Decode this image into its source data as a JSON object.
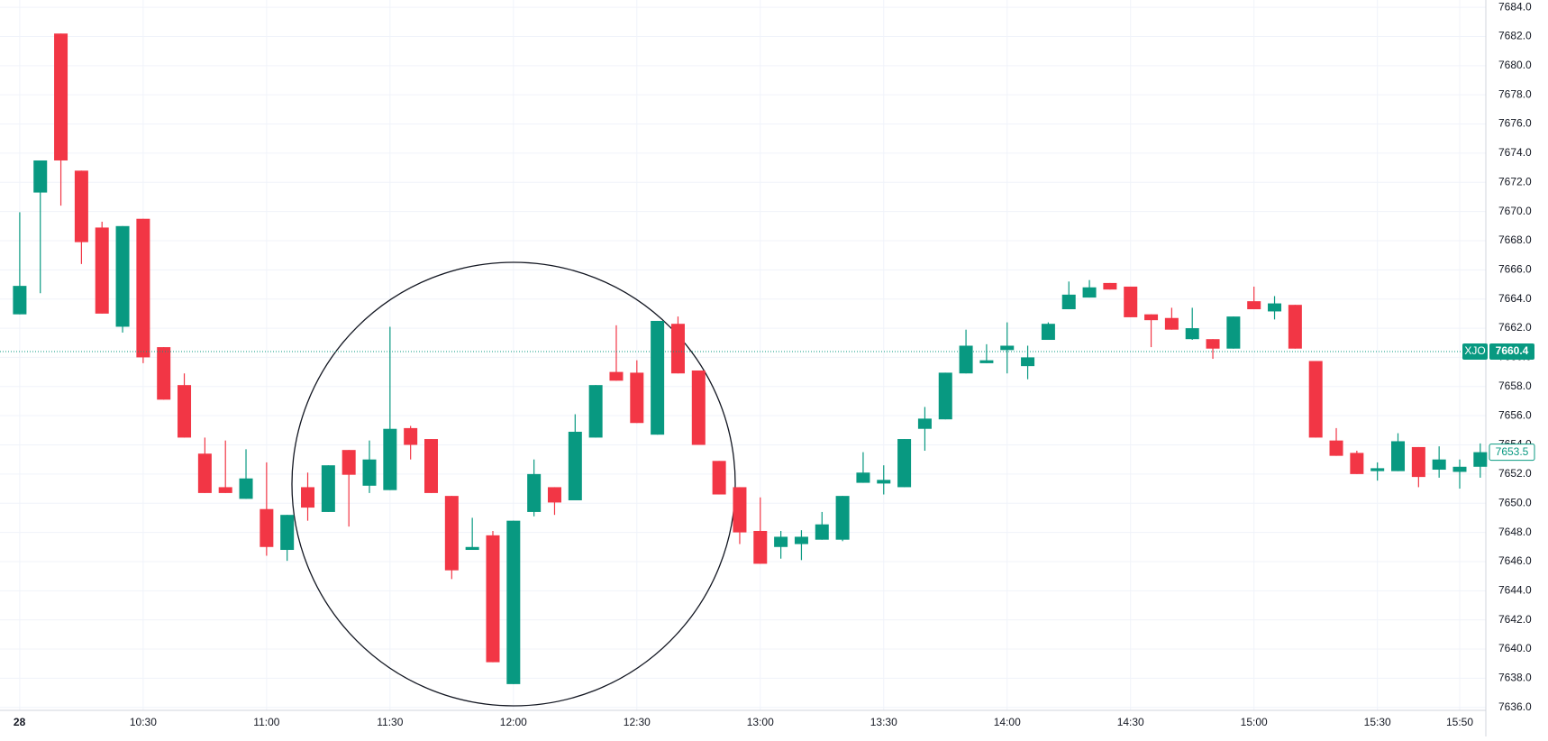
{
  "chart_data": {
    "type": "candlestick",
    "categories": [
      "28",
      null,
      null,
      null,
      null,
      null,
      "10:30",
      null,
      null,
      null,
      null,
      null,
      "11:00",
      null,
      null,
      null,
      null,
      null,
      "11:30",
      null,
      null,
      null,
      null,
      null,
      "12:00",
      null,
      null,
      null,
      null,
      null,
      "12:30",
      null,
      null,
      null,
      null,
      null,
      "13:00",
      null,
      null,
      null,
      null,
      null,
      "13:30",
      null,
      null,
      null,
      null,
      null,
      "14:00",
      null,
      null,
      null,
      null,
      null,
      "14:30",
      null,
      null,
      null,
      null,
      null,
      "15:00",
      null,
      null,
      null,
      null,
      null,
      "15:30",
      null,
      null,
      null,
      "15:50",
      null
    ],
    "open": [
      7662.95,
      7671.3,
      7682.2,
      7672.8,
      7668.9,
      7662.1,
      7669.5,
      7660.7,
      7658.1,
      7653.4,
      7651.1,
      7650.3,
      7649.6,
      7646.8,
      7651.1,
      7649.4,
      7653.65,
      7651.2,
      7650.9,
      7655.15,
      7654.4,
      7650.5,
      7646.8,
      7647.8,
      7637.6,
      7649.4,
      7651.1,
      7650.2,
      7654.5,
      7659.0,
      7658.95,
      7654.7,
      7662.3,
      7659.1,
      7652.9,
      7651.1,
      7648.1,
      7647.0,
      7647.2,
      7647.5,
      7647.5,
      7651.4,
      7651.35,
      7651.1,
      7655.1,
      7655.75,
      7658.9,
      7659.6,
      7660.5,
      7659.4,
      7661.2,
      7663.3,
      7664.1,
      7665.1,
      7664.85,
      7662.95,
      7662.7,
      7661.25,
      7661.25,
      7660.6,
      7663.85,
      7663.15,
      7663.6,
      7659.75,
      7654.3,
      7653.45,
      7652.2,
      7652.2,
      7653.85,
      7652.3,
      7652.15,
      7652.5
    ],
    "high": [
      7669.95,
      7673.5,
      7682.2,
      7672.8,
      7669.3,
      7669.0,
      7669.5,
      7660.7,
      7658.9,
      7654.5,
      7654.3,
      7653.7,
      7652.8,
      7649.2,
      7652.1,
      7652.6,
      7653.65,
      7654.3,
      7662.1,
      7655.3,
      7654.4,
      7650.5,
      7649.0,
      7648.1,
      7648.8,
      7653.0,
      7651.1,
      7656.1,
      7658.1,
      7662.2,
      7659.8,
      7662.5,
      7662.8,
      7659.1,
      7652.9,
      7651.1,
      7650.4,
      7648.1,
      7648.15,
      7649.4,
      7650.5,
      7653.5,
      7652.6,
      7654.4,
      7656.6,
      7658.95,
      7661.9,
      7660.9,
      7662.4,
      7660.8,
      7662.4,
      7665.2,
      7665.3,
      7665.1,
      7664.85,
      7662.95,
      7663.4,
      7663.4,
      7661.25,
      7662.8,
      7664.85,
      7664.2,
      7663.6,
      7659.75,
      7655.15,
      7653.6,
      7652.8,
      7654.8,
      7653.85,
      7653.9,
      7653.0,
      7654.1
    ],
    "low": [
      7662.95,
      7664.4,
      7670.4,
      7666.4,
      7663.0,
      7661.7,
      7659.6,
      7657.1,
      7654.5,
      7650.7,
      7650.7,
      7650.3,
      7646.4,
      7646.05,
      7648.8,
      7649.4,
      7648.4,
      7650.7,
      7650.9,
      7653.0,
      7650.7,
      7644.8,
      7646.8,
      7639.1,
      7637.6,
      7649.1,
      7649.2,
      7650.2,
      7654.5,
      7658.4,
      7655.5,
      7654.7,
      7658.9,
      7654.0,
      7650.6,
      7647.2,
      7645.85,
      7646.2,
      7646.1,
      7647.5,
      7647.4,
      7651.4,
      7650.6,
      7651.1,
      7653.6,
      7655.75,
      7658.9,
      7659.6,
      7658.9,
      7658.5,
      7661.2,
      7663.3,
      7664.1,
      7664.65,
      7662.75,
      7660.7,
      7661.9,
      7661.2,
      7659.9,
      7660.6,
      7663.3,
      7662.6,
      7660.6,
      7654.5,
      7653.25,
      7652.0,
      7651.55,
      7652.2,
      7651.1,
      7651.75,
      7651.0,
      7651.75
    ],
    "close": [
      7664.9,
      7673.5,
      7673.5,
      7667.9,
      7663.0,
      7669.0,
      7660.0,
      7657.1,
      7654.5,
      7650.7,
      7650.7,
      7651.7,
      7647.0,
      7649.2,
      7649.7,
      7652.6,
      7651.95,
      7653.0,
      7655.1,
      7654.0,
      7650.7,
      7645.4,
      7647.0,
      7639.1,
      7648.8,
      7652.0,
      7650.05,
      7654.9,
      7658.1,
      7658.4,
      7655.5,
      7662.5,
      7658.9,
      7654.0,
      7650.6,
      7648.0,
      7645.85,
      7647.7,
      7647.7,
      7648.55,
      7650.5,
      7652.1,
      7651.6,
      7654.4,
      7655.8,
      7658.95,
      7660.8,
      7659.8,
      7660.8,
      7660.0,
      7662.3,
      7664.3,
      7664.8,
      7664.65,
      7662.75,
      7662.55,
      7661.9,
      7662.0,
      7660.6,
      7662.8,
      7663.3,
      7663.7,
      7660.6,
      7654.5,
      7653.25,
      7652.0,
      7652.4,
      7654.25,
      7651.8,
      7653.0,
      7652.5,
      7653.5
    ],
    "up_color": "#089981",
    "down_color": "#f23645",
    "ylim": [
      7635.8,
      7684.5
    ],
    "yticks": [
      {
        "value": 7636,
        "label": "7636.0"
      },
      {
        "value": 7638,
        "label": "7638.0"
      },
      {
        "value": 7640,
        "label": "7640.0"
      },
      {
        "value": 7642,
        "label": "7642.0"
      },
      {
        "value": 7644,
        "label": "7644.0"
      },
      {
        "value": 7646,
        "label": "7646.0"
      },
      {
        "value": 7648,
        "label": "7648.0"
      },
      {
        "value": 7650,
        "label": "7650.0"
      },
      {
        "value": 7652,
        "label": "7652.0"
      },
      {
        "value": 7654,
        "label": "7654.0"
      },
      {
        "value": 7656,
        "label": "7656.0"
      },
      {
        "value": 7658,
        "label": "7658.0"
      },
      {
        "value": 7660,
        "label": "7660.0"
      },
      {
        "value": 7662,
        "label": "7662.0"
      },
      {
        "value": 7664,
        "label": "7664.0"
      },
      {
        "value": 7666,
        "label": "7666.0"
      },
      {
        "value": 7668,
        "label": "7668.0"
      },
      {
        "value": 7670,
        "label": "7670.0"
      },
      {
        "value": 7672,
        "label": "7672.0"
      },
      {
        "value": 7674,
        "label": "7674.0"
      },
      {
        "value": 7676,
        "label": "7676.0"
      },
      {
        "value": 7678,
        "label": "7678.0"
      },
      {
        "value": 7680,
        "label": "7680.0"
      },
      {
        "value": 7682,
        "label": "7682.0"
      },
      {
        "value": 7684,
        "label": "7684.0"
      }
    ],
    "grid": true,
    "price_labels": [
      {
        "name": "XJO",
        "value": 7660.4
      },
      {
        "value": 7653.5
      }
    ]
  }
}
